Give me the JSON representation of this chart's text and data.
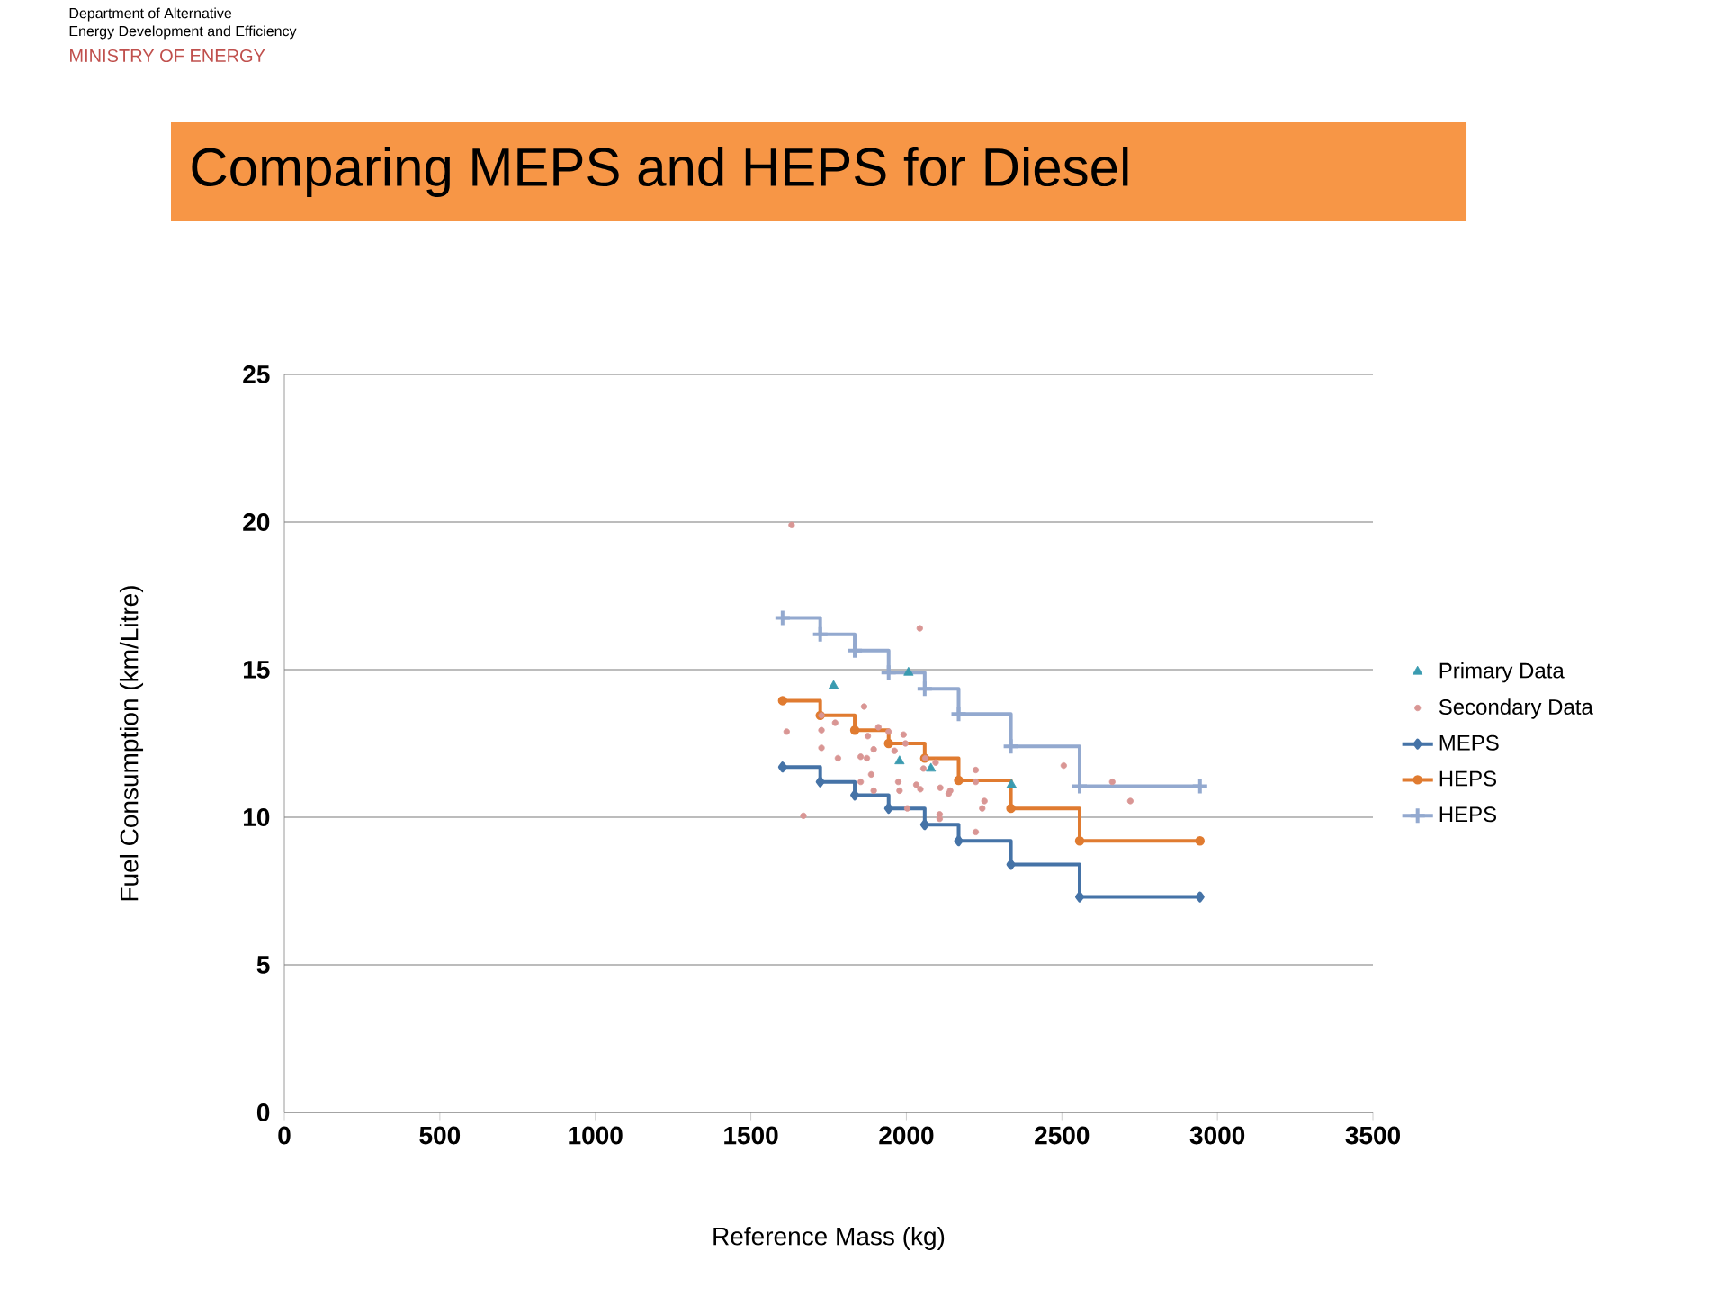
{
  "chart_data": {
    "type": "scatter",
    "title": "Comparing MEPS and HEPS for Diesel",
    "annotations": [
      "Department of Alternative",
      "Energy Development and Efficiency",
      "MINISTRY OF ENERGY"
    ],
    "xlabel": "Reference Mass (kg)",
    "ylabel": "Fuel Consumption (km/Litre)",
    "xlim": [
      0,
      3500
    ],
    "xticks": [
      0,
      500,
      1000,
      1500,
      2000,
      2500,
      3000,
      3500
    ],
    "ylim": [
      0,
      25
    ],
    "yticks": [
      0,
      5,
      10,
      15,
      20,
      25
    ],
    "grid": "y",
    "legend": "right",
    "series": [
      {
        "name": "Primary Data",
        "marker": "triangle",
        "color": "#3a9bb0",
        "x": [
          1766,
          2007,
          1978,
          2079,
          2338
        ],
        "values": [
          14.45,
          14.9,
          11.9,
          11.65,
          11.1
        ]
      },
      {
        "name": "Secondary Data",
        "marker": "circle",
        "color": "#d99694",
        "x": [
          1631,
          2043,
          1864,
          1615,
          1727,
          1771,
          1727,
          1876,
          1910,
          1943,
          1991,
          1997,
          1727,
          1895,
          1962,
          1853,
          1873,
          1780,
          2061,
          2094,
          1887,
          2055,
          2223,
          2506,
          1853,
          1974,
          2032,
          2045,
          2109,
          2141,
          2136,
          2223,
          1895,
          1978,
          2251,
          2244,
          2003,
          2107,
          2107,
          2223,
          1669,
          2662,
          2720
        ],
        "values": [
          19.9,
          16.4,
          13.75,
          12.9,
          13.45,
          13.2,
          12.95,
          12.75,
          13.05,
          12.9,
          12.8,
          12.5,
          12.35,
          12.3,
          12.25,
          12.05,
          12.0,
          12.0,
          12.0,
          11.85,
          11.45,
          11.65,
          11.6,
          11.75,
          11.2,
          11.2,
          11.1,
          10.95,
          11.0,
          10.9,
          10.8,
          11.2,
          10.9,
          10.9,
          10.55,
          10.3,
          10.3,
          10.1,
          9.95,
          9.5,
          10.05,
          11.2,
          10.55
        ]
      },
      {
        "name": "MEPS",
        "type": "step",
        "marker": "diamond",
        "color": "#4573a7",
        "x": [
          1602,
          1723,
          1834,
          1943,
          2059,
          2168,
          2336,
          2557,
          2944
        ],
        "values": [
          11.7,
          11.2,
          10.75,
          10.3,
          9.75,
          9.2,
          8.4,
          7.3,
          7.3
        ]
      },
      {
        "name": "HEPS",
        "type": "step",
        "marker": "circle",
        "color": "#e07b30",
        "x": [
          1602,
          1723,
          1834,
          1943,
          2059,
          2168,
          2336,
          2557,
          2944
        ],
        "values": [
          13.95,
          13.45,
          12.95,
          12.5,
          12.0,
          11.25,
          10.3,
          9.2,
          9.2
        ]
      },
      {
        "name": "HEPS",
        "type": "step",
        "marker": "cross",
        "color": "#93a9cf",
        "x": [
          1602,
          1723,
          1834,
          1943,
          2059,
          2168,
          2336,
          2557,
          2944
        ],
        "values": [
          16.75,
          16.2,
          15.65,
          14.9,
          14.35,
          13.5,
          12.4,
          11.05,
          11.05
        ]
      }
    ]
  }
}
